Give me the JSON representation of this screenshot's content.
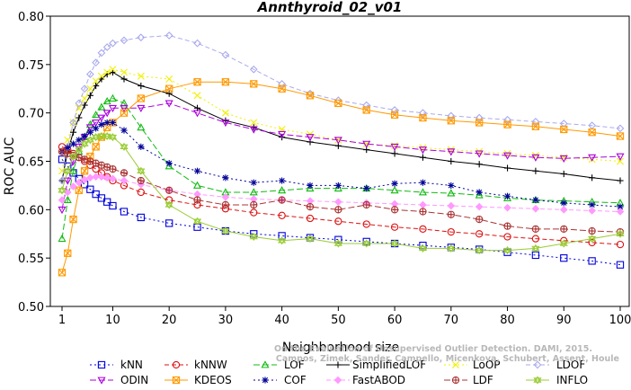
{
  "chart_data": {
    "type": "line",
    "title": "Annthyroid_02_v01",
    "xlabel": "Neighborhood size",
    "ylabel": "ROC AUC",
    "xlim": [
      1,
      100
    ],
    "ylim": [
      0.5,
      0.8
    ],
    "xticks": [
      1,
      10,
      20,
      30,
      40,
      50,
      60,
      70,
      80,
      90,
      100
    ],
    "xtick_labels": [
      "1",
      "10",
      "20",
      "30",
      "40",
      "50",
      "60",
      "70",
      "80",
      "90",
      "100"
    ],
    "yticks": [
      0.5,
      0.55,
      0.6,
      0.65,
      0.7,
      0.75,
      0.8
    ],
    "ytick_labels": [
      "0.50",
      "0.55",
      "0.60",
      "0.65",
      "0.70",
      "0.75",
      "0.80"
    ],
    "grid": false,
    "legend_position": "bottom",
    "x": [
      1,
      2,
      3,
      4,
      5,
      6,
      7,
      8,
      9,
      10,
      12,
      15,
      20,
      25,
      30,
      35,
      40,
      45,
      50,
      55,
      60,
      65,
      70,
      75,
      80,
      85,
      90,
      95,
      100
    ],
    "series": [
      {
        "name": "kNN",
        "color": "#0000dd",
        "marker": "square",
        "dash": "2,3",
        "values": [
          0.652,
          0.645,
          0.638,
          0.632,
          0.626,
          0.621,
          0.616,
          0.612,
          0.608,
          0.604,
          0.598,
          0.592,
          0.586,
          0.582,
          0.578,
          0.575,
          0.573,
          0.571,
          0.569,
          0.567,
          0.565,
          0.563,
          0.561,
          0.559,
          0.556,
          0.553,
          0.55,
          0.547,
          0.543
        ]
      },
      {
        "name": "kNNW",
        "color": "#dd1111",
        "marker": "circle",
        "dash": "5,3",
        "values": [
          0.665,
          0.662,
          0.658,
          0.654,
          0.65,
          0.646,
          0.642,
          0.638,
          0.634,
          0.63,
          0.625,
          0.618,
          0.61,
          0.605,
          0.601,
          0.597,
          0.594,
          0.591,
          0.588,
          0.585,
          0.582,
          0.58,
          0.577,
          0.575,
          0.572,
          0.57,
          0.568,
          0.566,
          0.564
        ]
      },
      {
        "name": "LOF",
        "color": "#11bb11",
        "marker": "triangle-up",
        "dash": "7,3",
        "values": [
          0.57,
          0.61,
          0.64,
          0.66,
          0.675,
          0.688,
          0.698,
          0.706,
          0.712,
          0.715,
          0.71,
          0.685,
          0.645,
          0.625,
          0.618,
          0.618,
          0.62,
          0.622,
          0.622,
          0.622,
          0.62,
          0.618,
          0.617,
          0.615,
          0.612,
          0.61,
          0.609,
          0.608,
          0.607
        ]
      },
      {
        "name": "SimplifiedLOF",
        "color": "#000000",
        "marker": "plus",
        "dash": "none",
        "values": [
          0.63,
          0.66,
          0.68,
          0.695,
          0.708,
          0.718,
          0.728,
          0.735,
          0.74,
          0.742,
          0.735,
          0.728,
          0.72,
          0.705,
          0.692,
          0.685,
          0.675,
          0.67,
          0.666,
          0.662,
          0.658,
          0.654,
          0.65,
          0.647,
          0.643,
          0.64,
          0.637,
          0.633,
          0.63
        ]
      },
      {
        "name": "LoOP",
        "color": "#f0f000",
        "marker": "x",
        "dash": "2,3",
        "values": [
          0.64,
          0.672,
          0.69,
          0.705,
          0.715,
          0.725,
          0.733,
          0.738,
          0.742,
          0.745,
          0.742,
          0.738,
          0.735,
          0.718,
          0.7,
          0.69,
          0.683,
          0.678,
          0.672,
          0.668,
          0.666,
          0.664,
          0.662,
          0.66,
          0.658,
          0.656,
          0.654,
          0.652,
          0.65
        ]
      },
      {
        "name": "LDOF",
        "color": "#aaaaee",
        "marker": "diamond",
        "dash": "5,3",
        "values": [
          0.63,
          0.665,
          0.69,
          0.71,
          0.725,
          0.74,
          0.752,
          0.762,
          0.768,
          0.772,
          0.775,
          0.778,
          0.78,
          0.772,
          0.76,
          0.745,
          0.73,
          0.72,
          0.713,
          0.708,
          0.703,
          0.7,
          0.697,
          0.695,
          0.693,
          0.691,
          0.689,
          0.687,
          0.684
        ]
      },
      {
        "name": "ODIN",
        "color": "#aa00dd",
        "marker": "triangle-down",
        "dash": "7,3",
        "values": [
          0.6,
          0.63,
          0.65,
          0.665,
          0.675,
          0.685,
          0.69,
          0.695,
          0.7,
          0.705,
          0.705,
          0.705,
          0.71,
          0.7,
          0.69,
          0.683,
          0.678,
          0.675,
          0.672,
          0.668,
          0.665,
          0.662,
          0.66,
          0.658,
          0.656,
          0.654,
          0.653,
          0.654,
          0.655
        ]
      },
      {
        "name": "KDEOS",
        "color": "#ff9900",
        "marker": "box-x",
        "dash": "none",
        "values": [
          0.535,
          0.555,
          0.59,
          0.62,
          0.64,
          0.655,
          0.665,
          0.675,
          0.685,
          0.69,
          0.7,
          0.715,
          0.725,
          0.732,
          0.732,
          0.73,
          0.725,
          0.718,
          0.71,
          0.703,
          0.698,
          0.695,
          0.692,
          0.69,
          0.688,
          0.686,
          0.683,
          0.68,
          0.676
        ]
      },
      {
        "name": "COF",
        "color": "#000099",
        "marker": "asterisk",
        "dash": "2,3",
        "values": [
          0.66,
          0.664,
          0.668,
          0.672,
          0.676,
          0.68,
          0.684,
          0.688,
          0.69,
          0.69,
          0.682,
          0.665,
          0.648,
          0.64,
          0.633,
          0.628,
          0.63,
          0.625,
          0.625,
          0.622,
          0.627,
          0.628,
          0.625,
          0.618,
          0.614,
          0.61,
          0.607,
          0.605,
          0.603
        ]
      },
      {
        "name": "FastABOD",
        "color": "#ff99ff",
        "marker": "diamond-filled",
        "dash": "5,3",
        "values": [
          0.61,
          0.618,
          0.624,
          0.628,
          0.631,
          0.633,
          0.634,
          0.634,
          0.633,
          0.632,
          0.63,
          0.626,
          0.62,
          0.616,
          0.613,
          0.611,
          0.61,
          0.609,
          0.608,
          0.607,
          0.606,
          0.605,
          0.604,
          0.603,
          0.602,
          0.601,
          0.6,
          0.599,
          0.598
        ]
      },
      {
        "name": "LDF",
        "color": "#aa3333",
        "marker": "circle-plus",
        "dash": "7,3",
        "values": [
          0.66,
          0.658,
          0.656,
          0.654,
          0.652,
          0.65,
          0.648,
          0.646,
          0.644,
          0.642,
          0.638,
          0.63,
          0.62,
          0.61,
          0.605,
          0.605,
          0.61,
          0.603,
          0.6,
          0.605,
          0.6,
          0.598,
          0.595,
          0.59,
          0.583,
          0.58,
          0.58,
          0.578,
          0.577
        ]
      },
      {
        "name": "INFLO",
        "color": "#99cc33",
        "marker": "star",
        "dash": "none",
        "values": [
          0.62,
          0.64,
          0.655,
          0.662,
          0.668,
          0.672,
          0.675,
          0.676,
          0.676,
          0.675,
          0.665,
          0.64,
          0.605,
          0.588,
          0.578,
          0.572,
          0.568,
          0.57,
          0.565,
          0.565,
          0.565,
          0.56,
          0.56,
          0.558,
          0.558,
          0.56,
          0.565,
          0.57,
          0.575
        ]
      }
    ]
  },
  "watermark": {
    "line1": "Campos, Zimek, Sander, Campello, Micenkova, Schubert, Assent, Houle",
    "line2": "On the Evaluation of Unsupervised Outlier Detection. DAMI, 2015."
  }
}
